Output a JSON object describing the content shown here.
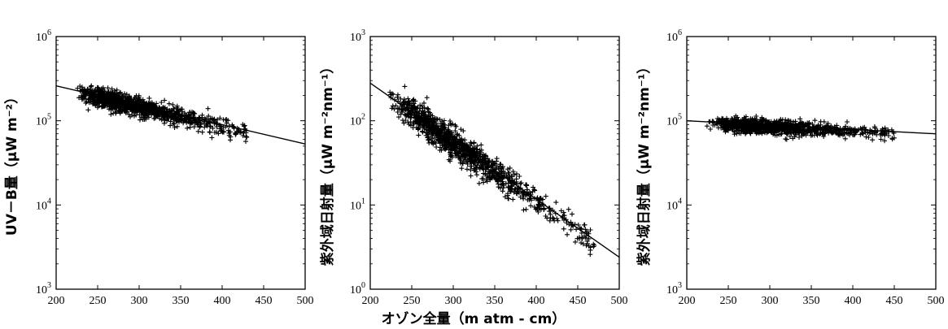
{
  "figure": {
    "shared_xlabel": "オゾン全量（m atm - cm）"
  },
  "chart_data": [
    {
      "type": "scatter",
      "title": "",
      "xlabel": "",
      "ylabel": "UV－B量（μW m⁻²）",
      "xlim": [
        200,
        500
      ],
      "ylim": [
        1000,
        1000000
      ],
      "yscale": "log",
      "xticks": [
        "200",
        "250",
        "300",
        "350",
        "400",
        "450",
        "500"
      ],
      "yticks": [
        {
          "base": "10",
          "exp": "3"
        },
        {
          "base": "10",
          "exp": "4"
        },
        {
          "base": "10",
          "exp": "5"
        },
        {
          "base": "10",
          "exp": "6"
        }
      ],
      "fit_line": {
        "x": [
          200,
          500
        ],
        "y": [
          260000,
          53000
        ]
      },
      "cloud": {
        "x_min": 225,
        "x_max": 430,
        "x_peak": 260,
        "spread": 0.1
      }
    },
    {
      "type": "scatter",
      "title": "",
      "xlabel": "",
      "ylabel": "紫外域日射量（μW m⁻²nm⁻¹）",
      "xlim": [
        200,
        500
      ],
      "ylim": [
        1,
        1000
      ],
      "yscale": "log",
      "xticks": [
        "200",
        "250",
        "300",
        "350",
        "400",
        "450",
        "500"
      ],
      "yticks": [
        {
          "base": "10",
          "exp": "0"
        },
        {
          "base": "10",
          "exp": "1"
        },
        {
          "base": "10",
          "exp": "2"
        },
        {
          "base": "10",
          "exp": "3"
        }
      ],
      "fit_line": {
        "x": [
          200,
          500
        ],
        "y": [
          280,
          2.4
        ]
      },
      "cloud": {
        "x_min": 222,
        "x_max": 470,
        "x_peak": 270,
        "spread": 0.16
      }
    },
    {
      "type": "scatter",
      "title": "",
      "xlabel": "",
      "ylabel": "紫外域日射量（μW m⁻²nm⁻¹）",
      "xlim": [
        200,
        500
      ],
      "ylim": [
        1000,
        1000000
      ],
      "yscale": "log",
      "xticks": [
        "200",
        "250",
        "300",
        "350",
        "400",
        "450",
        "500"
      ],
      "yticks": [
        {
          "base": "10",
          "exp": "3"
        },
        {
          "base": "10",
          "exp": "4"
        },
        {
          "base": "10",
          "exp": "5"
        },
        {
          "base": "10",
          "exp": "6"
        }
      ],
      "fit_line": {
        "x": [
          200,
          500
        ],
        "y": [
          100000,
          70000
        ]
      },
      "cloud": {
        "x_min": 222,
        "x_max": 450,
        "x_peak": 275,
        "spread": 0.07
      }
    }
  ]
}
